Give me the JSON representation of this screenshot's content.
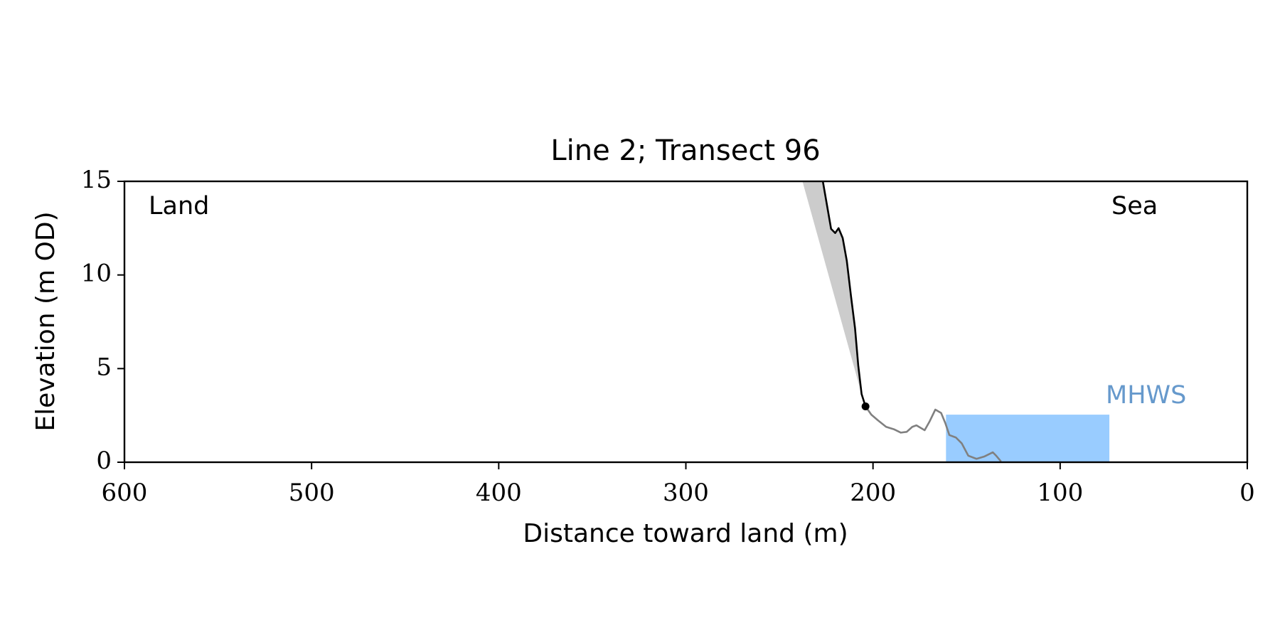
{
  "chart_data": {
    "type": "line",
    "title": "Line 2; Transect 96",
    "x_label": "Distance toward land (m)",
    "y_label": "Elevation (m OD)",
    "xlim": [
      600,
      0
    ],
    "ylim": [
      0,
      15
    ],
    "xticks": [
      600,
      500,
      400,
      300,
      200,
      100,
      0
    ],
    "yticks": [
      0,
      5,
      10,
      15
    ],
    "annotations": [
      {
        "text": "Land"
      },
      {
        "text": "Sea"
      }
    ],
    "shade": {
      "color": "#cccccc",
      "x": [
        237.7,
        206.1
      ],
      "values": [
        15,
        3.64
      ]
    },
    "series": [
      {
        "color": "#000000",
        "x": [
          226.8,
          222.4,
          220.2,
          218.4,
          216.2,
          214,
          211.8,
          209.6,
          207.9,
          206.1,
          204
        ],
        "values": [
          15,
          12.46,
          12.24,
          12.5,
          11.97,
          10.75,
          8.9,
          7.15,
          5.18,
          3.64,
          2.98
        ]
      },
      {
        "color": "#808080",
        "x": [
          204,
          200.9,
          197.4,
          193,
          188.6,
          185.1,
          182,
          179,
          176.8,
          172.4,
          169.7,
          166.7,
          163.6,
          161.4,
          159.2,
          155.7,
          152.6,
          149.1,
          144.7,
          140.4,
          136,
          134.2,
          131.6
        ],
        "values": [
          2.98,
          2.54,
          2.24,
          1.89,
          1.75,
          1.58,
          1.62,
          1.89,
          1.97,
          1.71,
          2.19,
          2.81,
          2.63,
          2.1,
          1.45,
          1.32,
          1.01,
          0.35,
          0.18,
          0.31,
          0.53,
          0.35,
          0.04
        ]
      }
    ],
    "toe": {
      "color": "#000000",
      "x": 204,
      "value": 2.98
    },
    "mhws": {
      "label": "MHWS",
      "color": "#99ccff",
      "label_color": "#6699cc",
      "x_range": [
        161,
        73.7
      ],
      "level": 2.54
    }
  }
}
